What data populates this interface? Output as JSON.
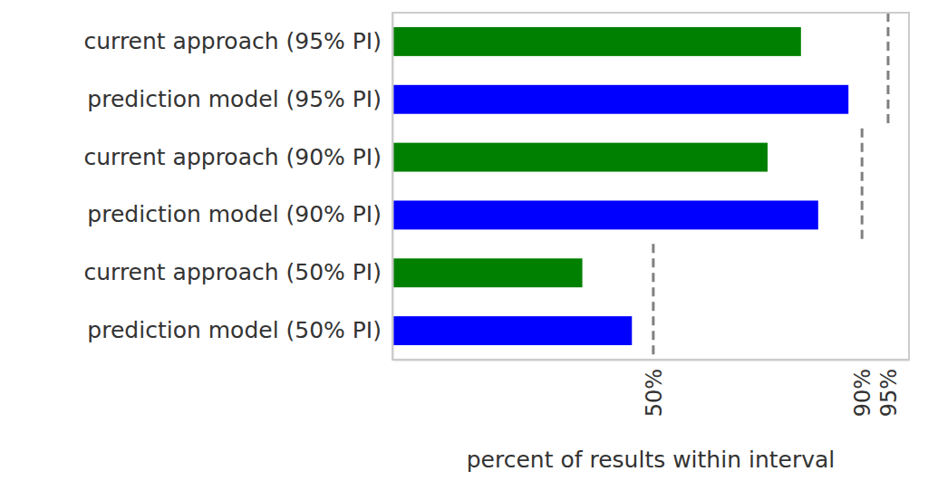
{
  "chart_data": {
    "type": "bar",
    "orientation": "horizontal",
    "x_label": "percent of results within interval",
    "categories": [
      "current approach (95% PI)",
      "prediction model (95% PI)",
      "current approach (90% PI)",
      "prediction model (90% PI)",
      "current approach (50% PI)",
      "prediction model (50% PI)"
    ],
    "values": [
      78.3,
      87.4,
      71.9,
      81.6,
      36.4,
      45.9
    ],
    "colors": [
      "#008000",
      "#0000ff",
      "#008000",
      "#0000ff",
      "#008000",
      "#0000ff"
    ],
    "xlim": [
      0,
      99
    ],
    "xticks": [
      {
        "value": 50,
        "label": "50%"
      },
      {
        "value": 90,
        "label": "90%"
      },
      {
        "value": 95,
        "label": "95%"
      }
    ],
    "grid": true
  }
}
